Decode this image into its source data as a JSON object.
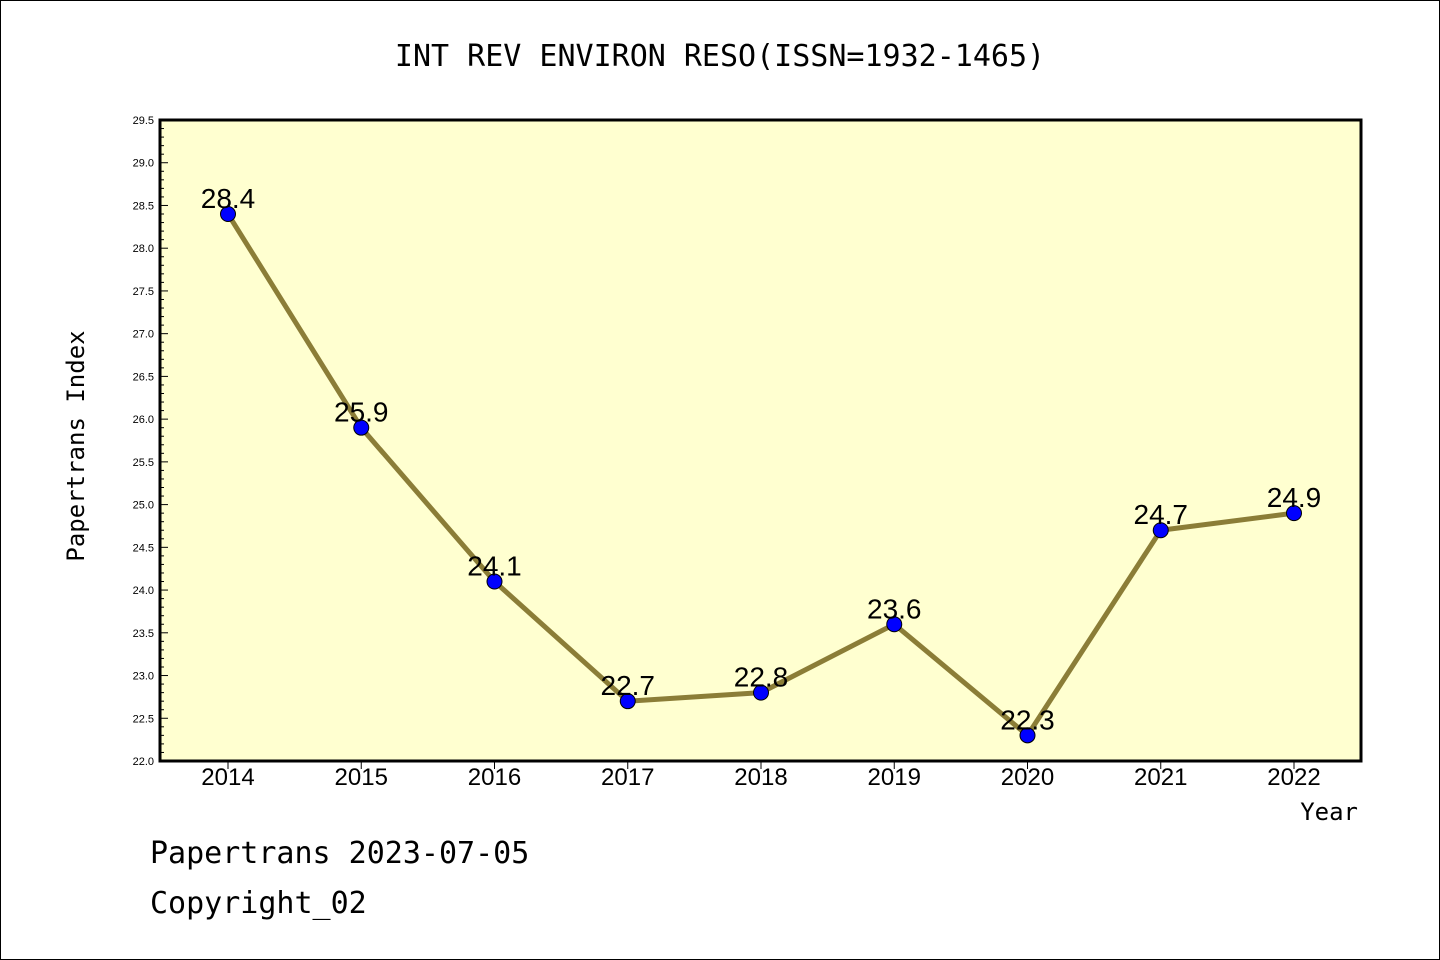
{
  "chart_data": {
    "type": "line",
    "title": "INT REV ENVIRON RESO(ISSN=1932-1465)",
    "xlabel": "Year",
    "ylabel": "Papertrans Index",
    "categories": [
      "2014",
      "2015",
      "2016",
      "2017",
      "2018",
      "2019",
      "2020",
      "2021",
      "2022"
    ],
    "series": [
      {
        "values": [
          28.4,
          25.9,
          24.1,
          22.7,
          22.8,
          23.6,
          22.3,
          24.7,
          24.9
        ],
        "labels": [
          "28.4",
          "25.9",
          "24.1",
          "22.7",
          "22.8",
          "23.6",
          "22.3",
          "24.7",
          "24.9"
        ],
        "line_color": "#8b7d37",
        "marker_color": "#0000ff"
      }
    ],
    "ylim": [
      22.0,
      29.5
    ],
    "yticks": [
      "22.0",
      "22.5",
      "23.0",
      "23.5",
      "24.0",
      "24.5",
      "25.0",
      "25.5",
      "26.0",
      "26.5",
      "27.0",
      "27.5",
      "28.0",
      "28.5",
      "29.0",
      "29.5"
    ],
    "plot_background": "#ffffd0",
    "grid": false
  },
  "footer": {
    "line1": "Papertrans 2023-07-05",
    "line2": "Copyright_02"
  }
}
